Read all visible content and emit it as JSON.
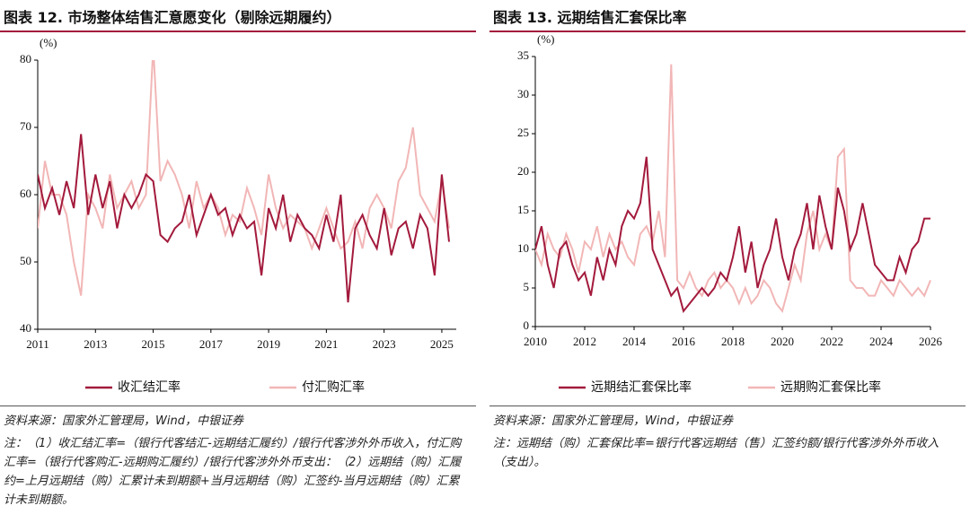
{
  "chart_data": [
    {
      "type": "line",
      "title": "图表 12. 市场整体结售汇意愿变化（剔除远期履约）",
      "y_label": "(%)",
      "x": [
        2011,
        2011.25,
        2011.5,
        2011.75,
        2012,
        2012.25,
        2012.5,
        2012.75,
        2013,
        2013.25,
        2013.5,
        2013.75,
        2014,
        2014.25,
        2014.5,
        2014.75,
        2015,
        2015.25,
        2015.5,
        2015.75,
        2016,
        2016.25,
        2016.5,
        2016.75,
        2017,
        2017.25,
        2017.5,
        2017.75,
        2018,
        2018.25,
        2018.5,
        2018.75,
        2019,
        2019.25,
        2019.5,
        2019.75,
        2020,
        2020.25,
        2020.5,
        2020.75,
        2021,
        2021.25,
        2021.5,
        2021.75,
        2022,
        2022.25,
        2022.5,
        2022.75,
        2023,
        2023.25,
        2023.5,
        2023.75,
        2024,
        2024.25,
        2024.5,
        2024.75,
        2025,
        2025.25
      ],
      "series": [
        {
          "name": "收汇结汇率",
          "color": "#a31a3c",
          "values": [
            63,
            58,
            61,
            57,
            62,
            58,
            69,
            57,
            63,
            58,
            62,
            55,
            60,
            58,
            60,
            63,
            62,
            54,
            53,
            55,
            56,
            60,
            54,
            57,
            60,
            57,
            58,
            54,
            57,
            55,
            56,
            48,
            58,
            55,
            60,
            53,
            57,
            55,
            54,
            52,
            57,
            53,
            60,
            44,
            55,
            57,
            54,
            52,
            58,
            51,
            55,
            56,
            52,
            57,
            55,
            48,
            63,
            53
          ]
        },
        {
          "name": "付汇购汇率",
          "color": "#f2b6b6",
          "values": [
            55,
            65,
            60,
            60,
            57,
            50,
            45,
            60,
            58,
            55,
            63,
            58,
            60,
            62,
            58,
            60,
            82,
            62,
            65,
            63,
            60,
            55,
            62,
            58,
            60,
            58,
            54,
            57,
            56,
            61,
            58,
            54,
            63,
            58,
            55,
            57,
            56,
            55,
            52,
            55,
            58,
            55,
            52,
            53,
            56,
            52,
            58,
            60,
            58,
            55,
            62,
            64,
            70,
            60,
            58,
            56,
            62,
            55
          ]
        }
      ],
      "xlim": [
        2011,
        2025.5
      ],
      "xticks": [
        2011,
        2013,
        2015,
        2017,
        2019,
        2021,
        2023,
        2025
      ],
      "ylim": [
        40,
        80
      ],
      "yticks": [
        40,
        50,
        60,
        70,
        80
      ],
      "source": "资料来源：国家外汇管理局，Wind，中银证券",
      "note": "注：（1）收汇结汇率=（银行代客结汇-远期结汇履约）/银行代客涉外外币收入，付汇购汇率=（银行代客购汇-远期购汇履约）/银行代客涉外外币支出：（2）远期结（购）汇履约=上月远期结（购）汇累计未到期额+当月远期结（购）汇签约-当月远期结（购）汇累计未到期额。"
    },
    {
      "type": "line",
      "title": "图表 13. 远期结售汇套保比率",
      "y_label": "(%)",
      "x": [
        2010,
        2010.25,
        2010.5,
        2010.75,
        2011,
        2011.25,
        2011.5,
        2011.75,
        2012,
        2012.25,
        2012.5,
        2012.75,
        2013,
        2013.25,
        2013.5,
        2013.75,
        2014,
        2014.25,
        2014.5,
        2014.75,
        2015,
        2015.25,
        2015.5,
        2015.75,
        2016,
        2016.25,
        2016.5,
        2016.75,
        2017,
        2017.25,
        2017.5,
        2017.75,
        2018,
        2018.25,
        2018.5,
        2018.75,
        2019,
        2019.25,
        2019.5,
        2019.75,
        2020,
        2020.25,
        2020.5,
        2020.75,
        2021,
        2021.25,
        2021.5,
        2021.75,
        2022,
        2022.25,
        2022.5,
        2022.75,
        2023,
        2023.25,
        2023.5,
        2023.75,
        2024,
        2024.25,
        2024.5,
        2024.75,
        2025,
        2025.25,
        2025.5,
        2025.75,
        2026
      ],
      "series": [
        {
          "name": "远期结汇套保比率",
          "color": "#a31a3c",
          "values": [
            10,
            13,
            8,
            5,
            10,
            11,
            8,
            6,
            7,
            4,
            9,
            6,
            10,
            8,
            13,
            15,
            14,
            16,
            22,
            10,
            8,
            6,
            4,
            5,
            2,
            3,
            4,
            5,
            4,
            5,
            7,
            6,
            9,
            13,
            7,
            11,
            5,
            8,
            10,
            14,
            9,
            6,
            10,
            12,
            16,
            10,
            17,
            13,
            10,
            18,
            15,
            10,
            12,
            16,
            12,
            8,
            7,
            6,
            6,
            9,
            7,
            10,
            11,
            14,
            14
          ]
        },
        {
          "name": "远期购汇套保比率",
          "color": "#f2b6b6",
          "values": [
            10,
            8,
            12,
            10,
            9,
            12,
            10,
            7,
            11,
            10,
            13,
            9,
            12,
            10,
            11,
            9,
            8,
            12,
            13,
            11,
            15,
            9,
            34,
            6,
            5,
            7,
            5,
            4,
            6,
            7,
            5,
            6,
            5,
            3,
            5,
            3,
            4,
            6,
            5,
            3,
            2,
            5,
            8,
            6,
            12,
            15,
            10,
            12,
            10,
            22,
            23,
            6,
            5,
            5,
            4,
            4,
            6,
            5,
            4,
            6,
            5,
            4,
            5,
            4,
            6
          ]
        }
      ],
      "xlim": [
        2010,
        2026
      ],
      "xticks": [
        2010,
        2012,
        2014,
        2016,
        2018,
        2020,
        2022,
        2024,
        2026
      ],
      "ylim": [
        0,
        35
      ],
      "yticks": [
        0,
        5,
        10,
        15,
        20,
        25,
        30,
        35
      ],
      "source": "资料来源：国家外汇管理局，Wind，中银证券",
      "note": "注：远期结（购）汇套保比率=银行代客远期结（售）汇签约额/银行代客涉外外币收入（支出）。"
    }
  ]
}
